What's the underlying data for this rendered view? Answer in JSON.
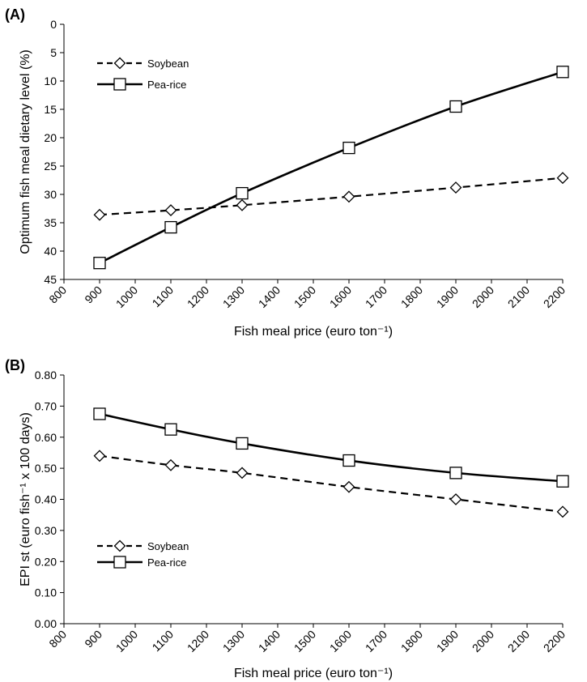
{
  "chart_data": [
    {
      "type": "line",
      "panel_label": "(A)",
      "xlabel": "Fish meal price (euro ton⁻¹)",
      "ylabel": "Optimum fish meal dietary level (%)",
      "x_ticks": [
        800,
        900,
        1000,
        1100,
        1200,
        1300,
        1400,
        1500,
        1600,
        1700,
        1800,
        1900,
        2000,
        2100,
        2200
      ],
      "y_ticks": [
        0,
        5,
        10,
        15,
        20,
        25,
        30,
        35,
        40,
        45
      ],
      "xlim": [
        800,
        2200
      ],
      "ylim": [
        0,
        45
      ],
      "y_inverted": true,
      "legend_position": "top-left",
      "series": [
        {
          "name": "Soybean",
          "style": "dashed",
          "marker": "diamond",
          "x": [
            900,
            1100,
            1300,
            1600,
            1900,
            2200
          ],
          "y": [
            33.6,
            32.8,
            31.9,
            30.4,
            28.8,
            27.1
          ]
        },
        {
          "name": "Pea-rice",
          "style": "solid",
          "marker": "square",
          "x": [
            900,
            1100,
            1300,
            1600,
            1900,
            2200
          ],
          "y": [
            42.1,
            35.8,
            29.8,
            21.8,
            14.5,
            8.4
          ]
        }
      ]
    },
    {
      "type": "line",
      "panel_label": "(B)",
      "xlabel": "Fish meal price (euro ton⁻¹)",
      "ylabel": "EPI st (euro fish⁻¹ x 100 days)",
      "x_ticks": [
        800,
        900,
        1000,
        1100,
        1200,
        1300,
        1400,
        1500,
        1600,
        1700,
        1800,
        1900,
        2000,
        2100,
        2200
      ],
      "y_ticks": [
        "0.00",
        "0.10",
        "0.20",
        "0.30",
        "0.40",
        "0.50",
        "0.60",
        "0.70",
        "0.80"
      ],
      "xlim": [
        800,
        2200
      ],
      "ylim": [
        0,
        0.8
      ],
      "legend_position": "bottom-left",
      "series": [
        {
          "name": "Soybean",
          "style": "dashed",
          "marker": "diamond",
          "x": [
            900,
            1100,
            1300,
            1600,
            1900,
            2200
          ],
          "y": [
            0.54,
            0.51,
            0.485,
            0.44,
            0.4,
            0.36
          ]
        },
        {
          "name": "Pea-rice",
          "style": "solid",
          "marker": "square",
          "x": [
            900,
            1100,
            1300,
            1600,
            1900,
            2200
          ],
          "y": [
            0.675,
            0.625,
            0.58,
            0.525,
            0.485,
            0.458
          ]
        }
      ]
    }
  ]
}
